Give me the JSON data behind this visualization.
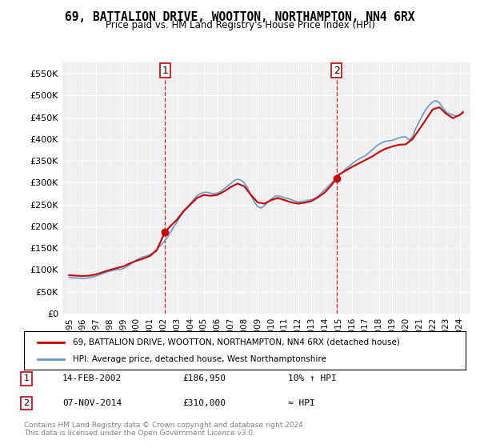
{
  "title": "69, BATTALION DRIVE, WOOTTON, NORTHAMPTON, NN4 6RX",
  "subtitle": "Price paid vs. HM Land Registry's House Price Index (HPI)",
  "ylabel": "",
  "ylim": [
    0,
    575000
  ],
  "yticks": [
    0,
    50000,
    100000,
    150000,
    200000,
    250000,
    300000,
    350000,
    400000,
    450000,
    500000,
    550000
  ],
  "ytick_labels": [
    "£0",
    "£50K",
    "£100K",
    "£150K",
    "£200K",
    "£250K",
    "£300K",
    "£350K",
    "£400K",
    "£450K",
    "£500K",
    "£550K"
  ],
  "sale1_date": 2002.12,
  "sale1_price": 186950,
  "sale1_label": "1",
  "sale2_date": 2014.86,
  "sale2_price": 310000,
  "sale2_label": "2",
  "line_color_property": "#cc0000",
  "line_color_hpi": "#6699cc",
  "background_color": "#f0f0f0",
  "legend_label_property": "69, BATTALION DRIVE, WOOTTON, NORTHAMPTON, NN4 6RX (detached house)",
  "legend_label_hpi": "HPI: Average price, detached house, West Northamptonshire",
  "table_row1": [
    "1",
    "14-FEB-2002",
    "£186,950",
    "10% ↑ HPI"
  ],
  "table_row2": [
    "2",
    "07-NOV-2014",
    "£310,000",
    "≈ HPI"
  ],
  "footer": "Contains HM Land Registry data © Crown copyright and database right 2024.\nThis data is licensed under the Open Government Licence v3.0.",
  "hpi_data": {
    "dates": [
      1995.0,
      1995.25,
      1995.5,
      1995.75,
      1996.0,
      1996.25,
      1996.5,
      1996.75,
      1997.0,
      1997.25,
      1997.5,
      1997.75,
      1998.0,
      1998.25,
      1998.5,
      1998.75,
      1999.0,
      1999.25,
      1999.5,
      1999.75,
      2000.0,
      2000.25,
      2000.5,
      2000.75,
      2001.0,
      2001.25,
      2001.5,
      2001.75,
      2002.0,
      2002.25,
      2002.5,
      2002.75,
      2003.0,
      2003.25,
      2003.5,
      2003.75,
      2004.0,
      2004.25,
      2004.5,
      2004.75,
      2005.0,
      2005.25,
      2005.5,
      2005.75,
      2006.0,
      2006.25,
      2006.5,
      2006.75,
      2007.0,
      2007.25,
      2007.5,
      2007.75,
      2008.0,
      2008.25,
      2008.5,
      2008.75,
      2009.0,
      2009.25,
      2009.5,
      2009.75,
      2010.0,
      2010.25,
      2010.5,
      2010.75,
      2011.0,
      2011.25,
      2011.5,
      2011.75,
      2012.0,
      2012.25,
      2012.5,
      2012.75,
      2013.0,
      2013.25,
      2013.5,
      2013.75,
      2014.0,
      2014.25,
      2014.5,
      2014.75,
      2015.0,
      2015.25,
      2015.5,
      2015.75,
      2016.0,
      2016.25,
      2016.5,
      2016.75,
      2017.0,
      2017.25,
      2017.5,
      2017.75,
      2018.0,
      2018.25,
      2018.5,
      2018.75,
      2019.0,
      2019.25,
      2019.5,
      2019.75,
      2020.0,
      2020.25,
      2020.5,
      2020.75,
      2021.0,
      2021.25,
      2021.5,
      2021.75,
      2022.0,
      2022.25,
      2022.5,
      2022.75,
      2023.0,
      2023.25,
      2023.5,
      2023.75,
      2024.0,
      2024.25
    ],
    "values": [
      83000,
      82000,
      81500,
      81000,
      80500,
      81000,
      82000,
      84000,
      86000,
      89000,
      92000,
      95000,
      97000,
      99000,
      100500,
      101000,
      103000,
      107000,
      112000,
      118000,
      123000,
      127000,
      130000,
      132000,
      135000,
      140000,
      147000,
      155000,
      163000,
      173000,
      185000,
      198000,
      210000,
      222000,
      233000,
      242000,
      252000,
      262000,
      270000,
      275000,
      278000,
      278000,
      276000,
      275000,
      276000,
      280000,
      286000,
      292000,
      298000,
      305000,
      308000,
      306000,
      300000,
      288000,
      272000,
      256000,
      245000,
      242000,
      247000,
      255000,
      262000,
      268000,
      270000,
      268000,
      265000,
      264000,
      261000,
      258000,
      256000,
      257000,
      258000,
      260000,
      261000,
      264000,
      269000,
      277000,
      284000,
      292000,
      300000,
      307000,
      315000,
      322000,
      330000,
      337000,
      343000,
      349000,
      354000,
      358000,
      362000,
      368000,
      375000,
      382000,
      388000,
      392000,
      395000,
      396000,
      397000,
      400000,
      403000,
      405000,
      405000,
      398000,
      405000,
      425000,
      440000,
      455000,
      468000,
      478000,
      485000,
      488000,
      483000,
      472000,
      462000,
      458000,
      455000,
      453000,
      455000,
      460000
    ]
  },
  "property_data": {
    "dates": [
      1995.0,
      1995.5,
      1996.0,
      1996.5,
      1997.0,
      1997.5,
      1998.0,
      1998.5,
      1999.0,
      1999.5,
      2000.0,
      2000.5,
      2001.0,
      2001.5,
      2002.12,
      2002.5,
      2003.0,
      2003.5,
      2004.0,
      2004.5,
      2005.0,
      2005.5,
      2006.0,
      2006.5,
      2007.0,
      2007.5,
      2008.0,
      2008.5,
      2009.0,
      2009.5,
      2010.0,
      2010.5,
      2011.0,
      2011.5,
      2012.0,
      2012.5,
      2013.0,
      2013.5,
      2014.0,
      2014.5,
      2014.86,
      2015.0,
      2015.5,
      2016.0,
      2016.5,
      2017.0,
      2017.5,
      2018.0,
      2018.5,
      2019.0,
      2019.5,
      2020.0,
      2020.5,
      2021.0,
      2021.5,
      2022.0,
      2022.5,
      2023.0,
      2023.5,
      2024.0,
      2024.25
    ],
    "values": [
      88000,
      87000,
      86000,
      87000,
      90000,
      95000,
      100000,
      104000,
      108000,
      115000,
      121000,
      126000,
      132000,
      145000,
      186950,
      200000,
      215000,
      235000,
      250000,
      265000,
      272000,
      270000,
      272000,
      280000,
      290000,
      298000,
      292000,
      272000,
      255000,
      252000,
      260000,
      265000,
      260000,
      255000,
      252000,
      254000,
      258000,
      267000,
      278000,
      295000,
      310000,
      318000,
      327000,
      336000,
      344000,
      352000,
      360000,
      370000,
      378000,
      383000,
      387000,
      388000,
      400000,
      422000,
      445000,
      468000,
      473000,
      458000,
      448000,
      455000,
      462000
    ]
  }
}
